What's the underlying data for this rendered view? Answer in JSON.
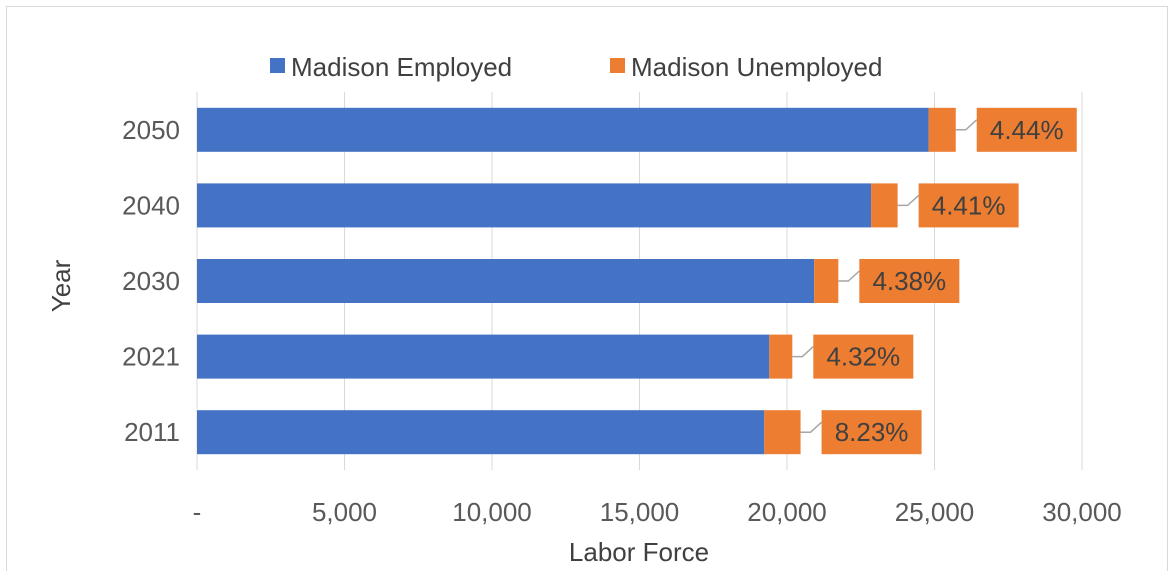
{
  "chart_data": {
    "type": "bar",
    "orientation": "horizontal",
    "stacked": true,
    "title": "",
    "xlabel": "Labor Force",
    "ylabel": "Year",
    "categories": [
      "2050",
      "2040",
      "2030",
      "2021",
      "2011"
    ],
    "series": [
      {
        "name": "Madison Employed",
        "color": "#4472c4",
        "values": [
          24800,
          22850,
          20920,
          19400,
          19230
        ]
      },
      {
        "name": "Madison Unemployed",
        "color": "#ed7d31",
        "values": [
          920,
          900,
          820,
          780,
          1230
        ]
      }
    ],
    "data_labels": [
      "4.44%",
      "4.41%",
      "4.38%",
      "4.32%",
      "8.23%"
    ],
    "xlim": [
      0,
      30000
    ],
    "xticks": [
      0,
      5000,
      10000,
      15000,
      20000,
      25000,
      30000
    ],
    "xtick_labels": [
      "-",
      "5,000",
      "10,000",
      "15,000",
      "20,000",
      "25,000",
      "30,000"
    ],
    "grid": "vertical",
    "legend_position": "top"
  }
}
